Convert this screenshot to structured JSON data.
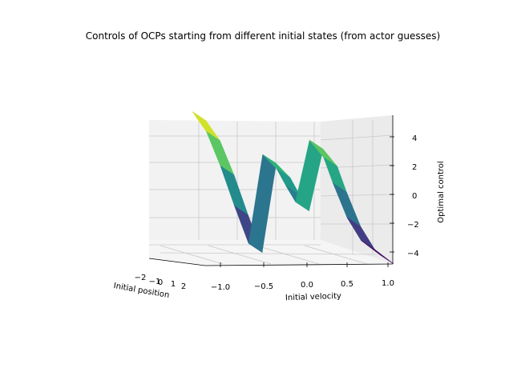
{
  "chart_data": {
    "type": "surface3d",
    "title": "Controls of OCPs starting from different initial states (from actor guesses)",
    "xlabel": "Initial position",
    "ylabel": "Initial velocity",
    "zlabel": "Optimal control",
    "colormap": "viridis",
    "xlim": [
      -2,
      2
    ],
    "ylim": [
      -1,
      1
    ],
    "zlim": [
      -5,
      5
    ],
    "x_ticks": [
      "−2",
      "−1",
      "0",
      "1",
      "2"
    ],
    "y_ticks": [
      "−1.0",
      "−0.5",
      "0.0",
      "0.5",
      "1.0"
    ],
    "z_ticks": [
      "4",
      "2",
      "0",
      "−2",
      "−4"
    ],
    "profile": {
      "velocity": [
        -1.0,
        -0.85,
        -0.7,
        -0.55,
        -0.4,
        -0.25,
        -0.1,
        0.0,
        0.1,
        0.25,
        0.4,
        0.5,
        0.65,
        0.8,
        1.0
      ],
      "control": [
        5.0,
        3.6,
        1.2,
        -1.6,
        -4.2,
        2.0,
        1.0,
        -0.2,
        -1.3,
        3.0,
        1.8,
        0.0,
        -2.4,
        -4.0,
        -5.0
      ]
    }
  }
}
